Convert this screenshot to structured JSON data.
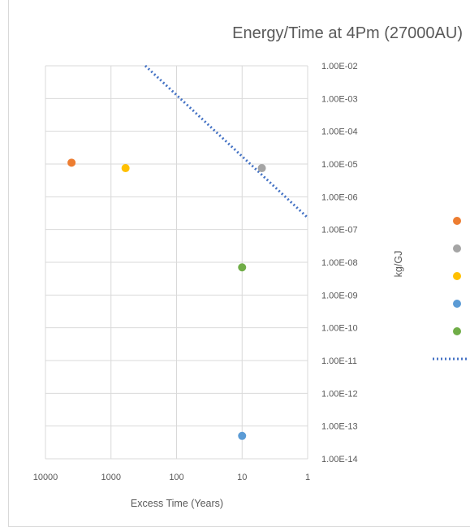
{
  "chart_data": {
    "type": "scatter",
    "title": "Energy/Time at 4Pm (27000AU)",
    "xlabel": "Excess Time (Years)",
    "ylabel": "kg/GJ",
    "x_scale": "log",
    "x_reversed": true,
    "y_scale": "log",
    "x_ticks": [
      "10000",
      "1000",
      "100",
      "10",
      "1"
    ],
    "y_ticks": [
      "1.00E-02",
      "1.00E-03",
      "1.00E-04",
      "1.00E-05",
      "1.00E-06",
      "1.00E-07",
      "1.00E-08",
      "1.00E-09",
      "1.00E-10",
      "1.00E-11",
      "1.00E-12",
      "1.00E-13",
      "1.00E-14"
    ],
    "xlim": [
      10000,
      1
    ],
    "ylim": [
      1e-14,
      0.01
    ],
    "y_axis_side": "right",
    "grid": true,
    "legend_position": "right",
    "series": [
      {
        "color": "#ed7d31",
        "points": [
          {
            "x": 4000,
            "y": 1.1e-05
          }
        ]
      },
      {
        "color": "#a5a5a5",
        "points": [
          {
            "x": 5,
            "y": 7.5e-06
          }
        ]
      },
      {
        "color": "#ffc000",
        "points": [
          {
            "x": 600,
            "y": 7.5e-06
          }
        ]
      },
      {
        "color": "#5b9bd5",
        "points": [
          {
            "x": 10,
            "y": 5e-14
          }
        ]
      },
      {
        "color": "#70ad47",
        "points": [
          {
            "x": 10,
            "y": 7e-09
          }
        ]
      }
    ],
    "trendline": {
      "style": "dotted",
      "color": "#4472c4",
      "points": [
        {
          "x": 300,
          "y": 0.01
        },
        {
          "x": 1,
          "y": 2.3e-07
        }
      ]
    }
  }
}
